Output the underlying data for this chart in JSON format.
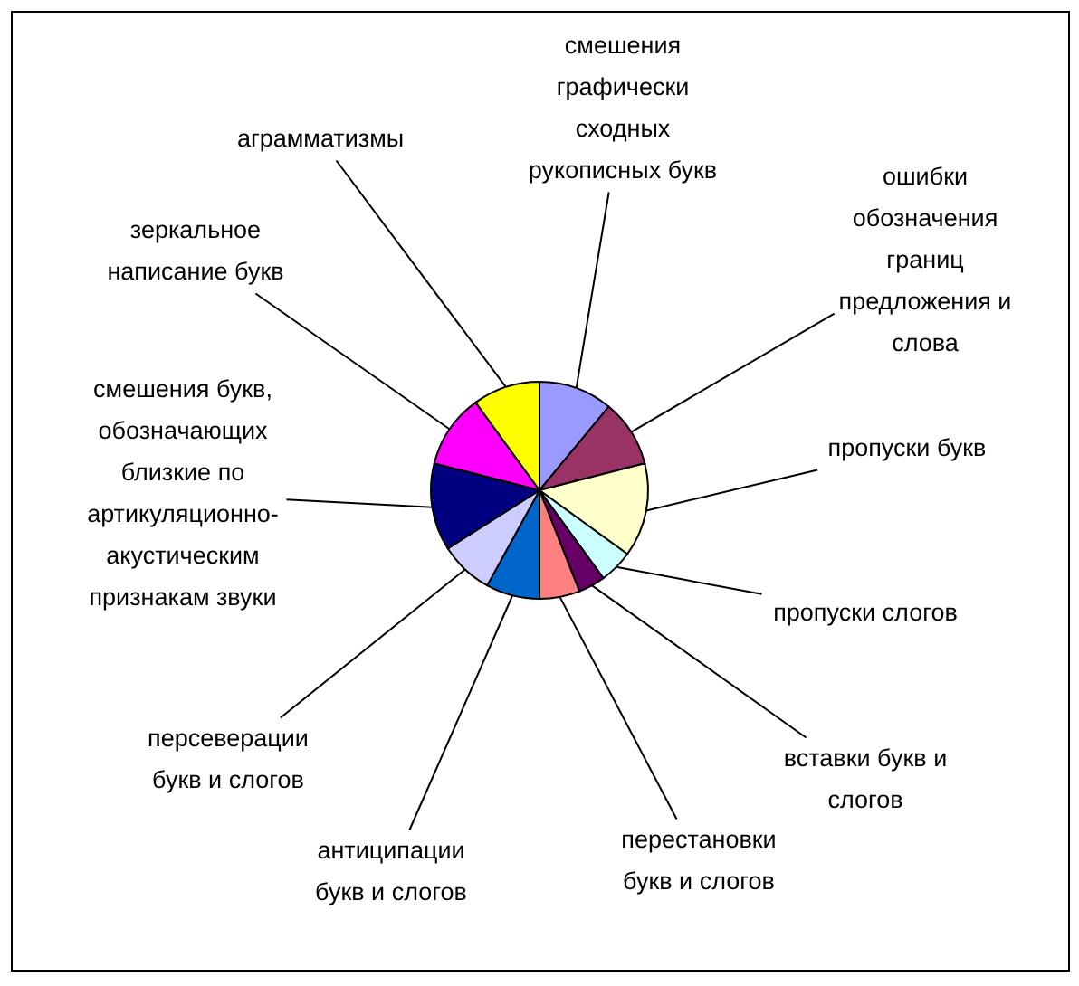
{
  "chart_data": {
    "type": "pie",
    "categories": [
      "смешения графически сходных рукописных букв",
      "ошибки обозначения границ предложения и слова",
      "пропуски букв",
      "пропуски слогов",
      "вставки букв и слогов",
      "перестановки букв и слогов",
      "антиципации букв и слогов",
      "персеверации букв и слогов",
      "смешения букв, обозначающих близкие по артикуляционно-акустическим признакам звуки",
      "зеркальное написание букв",
      "аграмматизмы"
    ],
    "values": [
      11,
      10,
      14,
      5,
      4,
      6,
      8,
      8,
      13,
      11,
      10
    ],
    "colors": [
      "#9999ff",
      "#993366",
      "#ffffcc",
      "#ccffff",
      "#660066",
      "#ff8080",
      "#0066cc",
      "#ccccff",
      "#000080",
      "#ff00ff",
      "#ffff00"
    ]
  }
}
